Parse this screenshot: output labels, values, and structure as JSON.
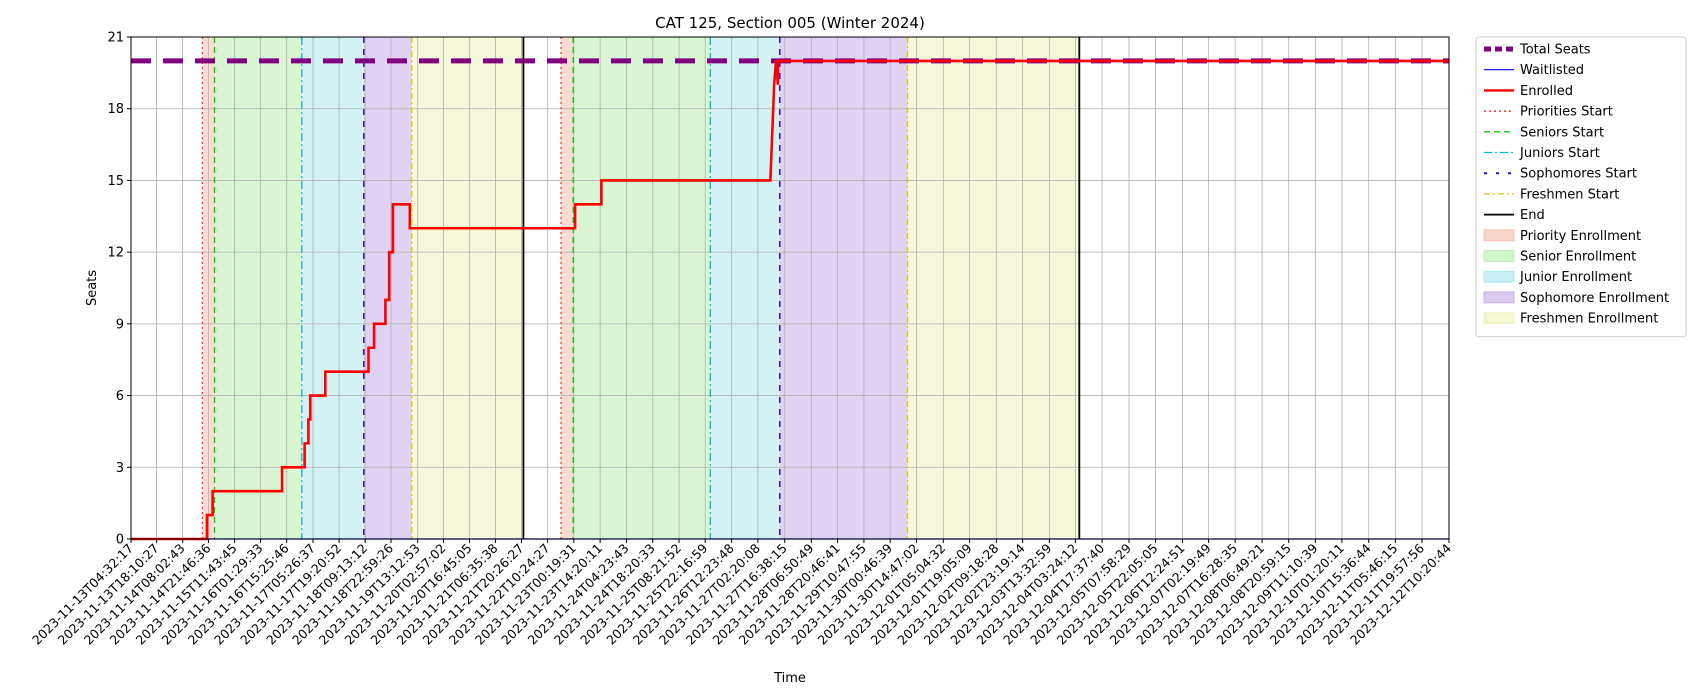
{
  "chart_data": {
    "type": "line",
    "title": "CAT 125, Section 005 (Winter 2024)",
    "xlabel": "Time",
    "ylabel": "Seats",
    "ylim": [
      0,
      21
    ],
    "yticks": [
      0,
      3,
      6,
      9,
      12,
      15,
      18,
      21
    ],
    "grid": true,
    "legend_position": "outside-right",
    "xlim": [
      "2023-11-13T04:32:17",
      "2023-12-12T10:20:44"
    ],
    "x_tick_labels": [
      "2023-11-13T04:32:17",
      "2023-11-13T18:10:27",
      "2023-11-14T08:02:43",
      "2023-11-14T21:46:36",
      "2023-11-15T11:43:45",
      "2023-11-16T01:29:33",
      "2023-11-16T15:25:46",
      "2023-11-17T05:26:37",
      "2023-11-17T19:20:52",
      "2023-11-18T09:13:12",
      "2023-11-18T22:59:26",
      "2023-11-19T13:12:53",
      "2023-11-20T02:57:02",
      "2023-11-20T16:45:05",
      "2023-11-21T06:35:38",
      "2023-11-21T20:26:27",
      "2023-11-22T10:24:27",
      "2023-11-23T00:19:31",
      "2023-11-23T14:20:11",
      "2023-11-24T04:23:43",
      "2023-11-24T18:20:33",
      "2023-11-25T08:21:52",
      "2023-11-25T22:16:59",
      "2023-11-26T12:23:48",
      "2023-11-27T02:20:08",
      "2023-11-27T16:38:15",
      "2023-11-28T06:50:49",
      "2023-11-28T20:46:41",
      "2023-11-29T10:47:55",
      "2023-11-30T00:46:39",
      "2023-11-30T14:47:02",
      "2023-12-01T05:04:32",
      "2023-12-01T19:05:09",
      "2023-12-02T09:18:28",
      "2023-12-02T23:19:14",
      "2023-12-03T13:32:59",
      "2023-12-04T03:24:12",
      "2023-12-04T17:37:40",
      "2023-12-05T07:58:29",
      "2023-12-05T22:05:05",
      "2023-12-06T12:24:51",
      "2023-12-07T02:19:49",
      "2023-12-07T16:28:35",
      "2023-12-08T06:49:21",
      "2023-12-08T20:59:15",
      "2023-12-09T11:10:39",
      "2023-12-10T01:20:11",
      "2023-12-10T15:36:44",
      "2023-12-11T05:46:15",
      "2023-12-11T19:57:56",
      "2023-12-12T10:20:44"
    ],
    "series": [
      {
        "name": "Total Seats",
        "color": "#800080",
        "style": "dashed-thick",
        "points": [
          [
            "2023-11-13T04:32:17",
            20
          ],
          [
            "2023-12-12T10:20:44",
            20
          ]
        ]
      },
      {
        "name": "Waitlisted",
        "color": "#0000ff",
        "style": "solid",
        "points": [
          [
            "2023-11-13T04:32:17",
            0
          ],
          [
            "2023-12-12T10:20:44",
            0
          ]
        ]
      },
      {
        "name": "Enrolled",
        "color": "#ff0000",
        "style": "solid-thick",
        "step": true,
        "points": [
          [
            "2023-11-13T04:32:17",
            0
          ],
          [
            "2023-11-14T21:00:00",
            0
          ],
          [
            "2023-11-14T21:00:00",
            1
          ],
          [
            "2023-11-15T00:00:00",
            1
          ],
          [
            "2023-11-15T00:00:00",
            2
          ],
          [
            "2023-11-16T13:00:00",
            2
          ],
          [
            "2023-11-16T13:00:00",
            3
          ],
          [
            "2023-11-17T01:00:00",
            3
          ],
          [
            "2023-11-17T01:00:00",
            4
          ],
          [
            "2023-11-17T03:00:00",
            4
          ],
          [
            "2023-11-17T03:00:00",
            5
          ],
          [
            "2023-11-17T04:00:00",
            5
          ],
          [
            "2023-11-17T04:00:00",
            6
          ],
          [
            "2023-11-17T12:00:00",
            6
          ],
          [
            "2023-11-17T12:00:00",
            7
          ],
          [
            "2023-11-18T11:00:00",
            7
          ],
          [
            "2023-11-18T11:00:00",
            8
          ],
          [
            "2023-11-18T14:00:00",
            8
          ],
          [
            "2023-11-18T14:00:00",
            9
          ],
          [
            "2023-11-18T20:00:00",
            9
          ],
          [
            "2023-11-18T20:00:00",
            10
          ],
          [
            "2023-11-18T22:00:00",
            10
          ],
          [
            "2023-11-18T22:00:00",
            12
          ],
          [
            "2023-11-19T00:00:00",
            12
          ],
          [
            "2023-11-19T00:00:00",
            14
          ],
          [
            "2023-11-19T09:00:00",
            14
          ],
          [
            "2023-11-19T09:00:00",
            13
          ],
          [
            "2023-11-23T01:00:00",
            13
          ],
          [
            "2023-11-23T01:00:00",
            14
          ],
          [
            "2023-11-23T15:00:00",
            14
          ],
          [
            "2023-11-23T15:00:00",
            15
          ],
          [
            "2023-11-27T09:00:00",
            15
          ],
          [
            "2023-11-27T11:00:00",
            19
          ],
          [
            "2023-11-27T12:00:00",
            20
          ],
          [
            "2023-11-27T13:00:00",
            19
          ],
          [
            "2023-11-27T13:00:00",
            20
          ],
          [
            "2023-12-12T10:20:44",
            20
          ]
        ]
      }
    ],
    "vertical_lines": [
      {
        "name": "Priorities Start",
        "x": "2023-11-14T18:30:00",
        "color": "#ff0000",
        "dash": "2,3",
        "width": 1
      },
      {
        "name": "Seniors Start",
        "x": "2023-11-15T01:00:00",
        "color": "#00cc00",
        "dash": "6,4",
        "width": 1.3
      },
      {
        "name": "Juniors Start",
        "x": "2023-11-16T23:30:00",
        "color": "#00bfbf",
        "dash": "8,3,2,3",
        "width": 1.3
      },
      {
        "name": "Sophomores Start",
        "x": "2023-11-18T08:30:00",
        "color": "#4400cc",
        "dash": "6,6",
        "width": 1.5
      },
      {
        "name": "Freshmen Start",
        "x": "2023-11-19T10:00:00",
        "color": "#e6c800",
        "dash": "6,3,2,3",
        "width": 1.3
      },
      {
        "name": "End",
        "x": "2023-11-21T21:30:00",
        "color": "#000000",
        "dash": "",
        "width": 1.8
      },
      {
        "name": "Priorities Start",
        "x": "2023-11-22T17:30:00",
        "color": "#ff0000",
        "dash": "2,3",
        "width": 1
      },
      {
        "name": "Seniors Start",
        "x": "2023-11-23T00:00:00",
        "color": "#00cc00",
        "dash": "6,4",
        "width": 1.3
      },
      {
        "name": "Juniors Start",
        "x": "2023-11-26T01:00:00",
        "color": "#00bfbf",
        "dash": "8,3,2,3",
        "width": 1.3
      },
      {
        "name": "Sophomores Start",
        "x": "2023-11-27T14:00:00",
        "color": "#4400cc",
        "dash": "6,6",
        "width": 1.5
      },
      {
        "name": "Freshmen Start",
        "x": "2023-11-30T10:00:00",
        "color": "#e6c800",
        "dash": "6,3,2,3",
        "width": 1.3
      },
      {
        "name": "End",
        "x": "2023-12-04T05:30:00",
        "color": "#000000",
        "dash": "",
        "width": 1.8
      }
    ],
    "shaded_regions": [
      {
        "name": "Priority Enrollment",
        "from": "2023-11-14T18:30:00",
        "to": "2023-11-15T01:00:00",
        "color": "#f4b9a6"
      },
      {
        "name": "Senior Enrollment",
        "from": "2023-11-15T01:00:00",
        "to": "2023-11-16T23:30:00",
        "color": "#b3ecaa"
      },
      {
        "name": "Junior Enrollment",
        "from": "2023-11-16T23:30:00",
        "to": "2023-11-18T08:30:00",
        "color": "#a6e5ea"
      },
      {
        "name": "Sophomore Enrollment",
        "from": "2023-11-18T08:30:00",
        "to": "2023-11-19T10:00:00",
        "color": "#c2a6ea"
      },
      {
        "name": "Freshmen Enrollment",
        "from": "2023-11-19T10:00:00",
        "to": "2023-11-21T21:30:00",
        "color": "#eff2b6"
      },
      {
        "name": "Priority Enrollment",
        "from": "2023-11-22T17:30:00",
        "to": "2023-11-23T00:00:00",
        "color": "#f4b9a6"
      },
      {
        "name": "Senior Enrollment",
        "from": "2023-11-23T00:00:00",
        "to": "2023-11-26T01:00:00",
        "color": "#b3ecaa"
      },
      {
        "name": "Junior Enrollment",
        "from": "2023-11-26T01:00:00",
        "to": "2023-11-27T14:00:00",
        "color": "#a6e5ea"
      },
      {
        "name": "Sophomore Enrollment",
        "from": "2023-11-27T14:00:00",
        "to": "2023-11-30T10:00:00",
        "color": "#c2a6ea"
      },
      {
        "name": "Freshmen Enrollment",
        "from": "2023-11-30T10:00:00",
        "to": "2023-12-04T05:30:00",
        "color": "#eff2b6"
      }
    ],
    "legend": [
      {
        "label": "Total Seats",
        "kind": "line",
        "color": "#800080",
        "dash": "7,4",
        "width": 5
      },
      {
        "label": "Waitlisted",
        "kind": "line",
        "color": "#0000ff",
        "dash": "",
        "width": 1.2
      },
      {
        "label": "Enrolled",
        "kind": "line",
        "color": "#ff0000",
        "dash": "",
        "width": 2.4
      },
      {
        "label": "Priorities Start",
        "kind": "line",
        "color": "#ff0000",
        "dash": "2,3",
        "width": 1.2
      },
      {
        "label": "Seniors Start",
        "kind": "line",
        "color": "#00cc00",
        "dash": "6,4",
        "width": 1.3
      },
      {
        "label": "Juniors Start",
        "kind": "line",
        "color": "#00bfbf",
        "dash": "8,3,2,3",
        "width": 1.3
      },
      {
        "label": "Sophomores Start",
        "kind": "line",
        "color": "#4400cc",
        "dash": "3,9",
        "width": 2
      },
      {
        "label": "Freshmen Start",
        "kind": "line",
        "color": "#e6c800",
        "dash": "6,3,2,3",
        "width": 1.3
      },
      {
        "label": "End",
        "kind": "line",
        "color": "#000000",
        "dash": "",
        "width": 1.8
      },
      {
        "label": "Priority Enrollment",
        "kind": "patch",
        "color": "#f4b9a6"
      },
      {
        "label": "Senior Enrollment",
        "kind": "patch",
        "color": "#b3ecaa"
      },
      {
        "label": "Junior Enrollment",
        "kind": "patch",
        "color": "#a6e5ea"
      },
      {
        "label": "Sophomore Enrollment",
        "kind": "patch",
        "color": "#c2a6ea"
      },
      {
        "label": "Freshmen Enrollment",
        "kind": "patch",
        "color": "#eff2b6"
      }
    ]
  }
}
